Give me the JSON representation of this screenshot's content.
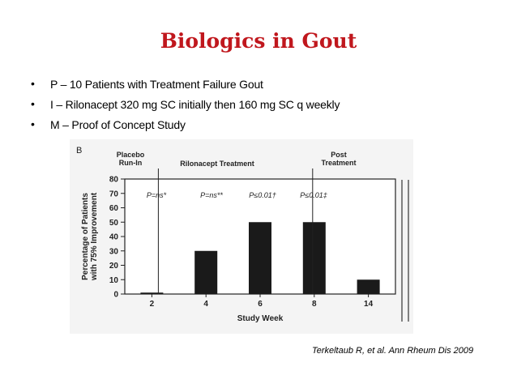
{
  "slide": {
    "title": "Biologics in Gout",
    "citation": "Terkeltaub R, et al. Ann Rheum Dis 2009"
  },
  "bullets": [
    {
      "marker": "•",
      "text": "P – 10 Patients with Treatment Failure Gout"
    },
    {
      "marker": "•",
      "text": "I – Rilonacept 320 mg SC initially then 160 mg SC q weekly"
    },
    {
      "marker": "•",
      "text": "M – Proof of Concept Study"
    }
  ],
  "figure": {
    "panel_label": "B",
    "phases": {
      "placebo": "Placebo\nRun-In",
      "treatment": "Rilonacept Treatment",
      "post": "Post\nTreatment"
    },
    "pvalues": [
      "P=ns*",
      "P=ns**",
      "P≤0.01†",
      "P≤0.01‡"
    ]
  },
  "chart_data": {
    "type": "bar",
    "categories": [
      "2",
      "4",
      "6",
      "8",
      "14"
    ],
    "values": [
      1,
      30,
      50,
      50,
      10
    ],
    "xlabel": "Study Week",
    "ylabel": "Percentage of Patients\nwith 75% Improvement",
    "ylim": [
      0,
      80
    ],
    "yticks": [
      0,
      10,
      20,
      30,
      40,
      50,
      60,
      70,
      80
    ],
    "bar_color": "#1a1a1a",
    "grid": false
  }
}
